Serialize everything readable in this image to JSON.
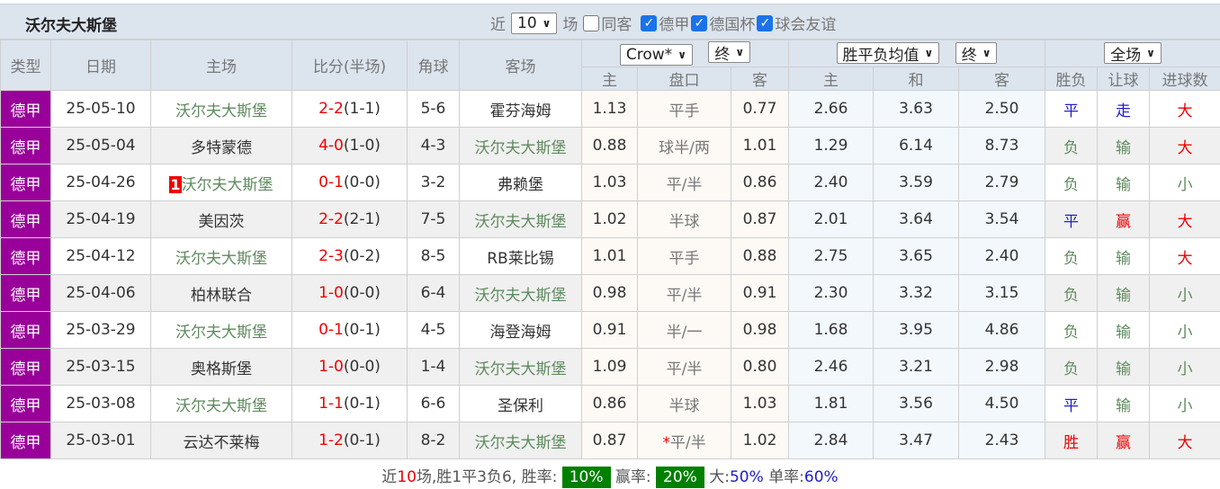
{
  "title": "沃尔夫大斯堡",
  "filters": {
    "recent_label": "近",
    "recent_value": "10",
    "games_label": "场",
    "same_home": {
      "label": "同客",
      "checked": false
    },
    "comps": [
      {
        "label": "德甲",
        "checked": true
      },
      {
        "label": "德国杯",
        "checked": true
      },
      {
        "label": "球会友谊",
        "checked": true
      }
    ]
  },
  "headers": {
    "type": "类型",
    "date": "日期",
    "home": "主场",
    "score": "比分(半场)",
    "corner": "角球",
    "away": "客场",
    "ah_company": "Crow*",
    "ah_time": "终",
    "eu_type": "胜平负均值",
    "eu_time": "终",
    "scope": "全场",
    "ah_home": "主",
    "ah_line": "盘口",
    "ah_away": "客",
    "eu_home": "主",
    "eu_draw": "和",
    "eu_away": "客",
    "wl": "胜负",
    "hc": "让球",
    "goals": "进球数"
  },
  "colors": {
    "league": "#990099",
    "team": "#5e8a5e",
    "score": "#ee0000",
    "draw": "#2020cc",
    "win_rate": "#008000"
  },
  "rows": [
    {
      "type": "德甲",
      "date": "25-05-10",
      "home": "沃尔夫大斯堡",
      "home_hl": true,
      "badge": "",
      "score": "2-2",
      "half": "(1-1)",
      "corner": "5-6",
      "away": "霍芬海姆",
      "away_hl": false,
      "ah_h": "1.13",
      "ah_star": "",
      "ah_line": "平手",
      "ah_a": "0.77",
      "eu_h": "2.66",
      "eu_d": "3.63",
      "eu_a": "2.50",
      "wl": "平",
      "hc": "走",
      "goals": "大"
    },
    {
      "type": "德甲",
      "date": "25-05-04",
      "home": "多特蒙德",
      "home_hl": false,
      "badge": "",
      "score": "4-0",
      "half": "(1-0)",
      "corner": "4-3",
      "away": "沃尔夫大斯堡",
      "away_hl": true,
      "ah_h": "0.88",
      "ah_star": "",
      "ah_line": "球半/两",
      "ah_a": "1.01",
      "eu_h": "1.29",
      "eu_d": "6.14",
      "eu_a": "8.73",
      "wl": "负",
      "hc": "输",
      "goals": "大"
    },
    {
      "type": "德甲",
      "date": "25-04-26",
      "home": "沃尔夫大斯堡",
      "home_hl": true,
      "badge": "1",
      "score": "0-1",
      "half": "(0-0)",
      "corner": "3-2",
      "away": "弗赖堡",
      "away_hl": false,
      "ah_h": "1.03",
      "ah_star": "",
      "ah_line": "平/半",
      "ah_a": "0.86",
      "eu_h": "2.40",
      "eu_d": "3.59",
      "eu_a": "2.79",
      "wl": "负",
      "hc": "输",
      "goals": "小"
    },
    {
      "type": "德甲",
      "date": "25-04-19",
      "home": "美因茨",
      "home_hl": false,
      "badge": "",
      "score": "2-2",
      "half": "(2-1)",
      "corner": "7-5",
      "away": "沃尔夫大斯堡",
      "away_hl": true,
      "ah_h": "1.02",
      "ah_star": "",
      "ah_line": "半球",
      "ah_a": "0.87",
      "eu_h": "2.01",
      "eu_d": "3.64",
      "eu_a": "3.54",
      "wl": "平",
      "hc": "赢",
      "goals": "大"
    },
    {
      "type": "德甲",
      "date": "25-04-12",
      "home": "沃尔夫大斯堡",
      "home_hl": true,
      "badge": "",
      "score": "2-3",
      "half": "(0-2)",
      "corner": "8-5",
      "away": "RB莱比锡",
      "away_hl": false,
      "ah_h": "1.01",
      "ah_star": "",
      "ah_line": "平手",
      "ah_a": "0.88",
      "eu_h": "2.75",
      "eu_d": "3.65",
      "eu_a": "2.40",
      "wl": "负",
      "hc": "输",
      "goals": "大"
    },
    {
      "type": "德甲",
      "date": "25-04-06",
      "home": "柏林联合",
      "home_hl": false,
      "badge": "",
      "score": "1-0",
      "half": "(0-0)",
      "corner": "6-4",
      "away": "沃尔夫大斯堡",
      "away_hl": true,
      "ah_h": "0.98",
      "ah_star": "",
      "ah_line": "平/半",
      "ah_a": "0.91",
      "eu_h": "2.30",
      "eu_d": "3.32",
      "eu_a": "3.15",
      "wl": "负",
      "hc": "输",
      "goals": "小"
    },
    {
      "type": "德甲",
      "date": "25-03-29",
      "home": "沃尔夫大斯堡",
      "home_hl": true,
      "badge": "",
      "score": "0-1",
      "half": "(0-1)",
      "corner": "4-5",
      "away": "海登海姆",
      "away_hl": false,
      "ah_h": "0.91",
      "ah_star": "",
      "ah_line": "半/一",
      "ah_a": "0.98",
      "eu_h": "1.68",
      "eu_d": "3.95",
      "eu_a": "4.86",
      "wl": "负",
      "hc": "输",
      "goals": "小"
    },
    {
      "type": "德甲",
      "date": "25-03-15",
      "home": "奥格斯堡",
      "home_hl": false,
      "badge": "",
      "score": "1-0",
      "half": "(0-0)",
      "corner": "1-4",
      "away": "沃尔夫大斯堡",
      "away_hl": true,
      "ah_h": "1.09",
      "ah_star": "",
      "ah_line": "平/半",
      "ah_a": "0.80",
      "eu_h": "2.46",
      "eu_d": "3.21",
      "eu_a": "2.98",
      "wl": "负",
      "hc": "输",
      "goals": "小"
    },
    {
      "type": "德甲",
      "date": "25-03-08",
      "home": "沃尔夫大斯堡",
      "home_hl": true,
      "badge": "",
      "score": "1-1",
      "half": "(0-1)",
      "corner": "6-6",
      "away": "圣保利",
      "away_hl": false,
      "ah_h": "0.86",
      "ah_star": "",
      "ah_line": "半球",
      "ah_a": "1.03",
      "eu_h": "1.81",
      "eu_d": "3.56",
      "eu_a": "4.50",
      "wl": "平",
      "hc": "输",
      "goals": "小"
    },
    {
      "type": "德甲",
      "date": "25-03-01",
      "home": "云达不莱梅",
      "home_hl": false,
      "badge": "",
      "score": "1-2",
      "half": "(0-1)",
      "corner": "8-2",
      "away": "沃尔夫大斯堡",
      "away_hl": true,
      "ah_h": "0.87",
      "ah_star": "*",
      "ah_line": "平/半",
      "ah_a": "1.02",
      "eu_h": "2.84",
      "eu_d": "3.47",
      "eu_a": "2.43",
      "wl": "胜",
      "hc": "赢",
      "goals": "大"
    }
  ],
  "summary": {
    "p1": "近",
    "n": "10",
    "p2": "场,胜1平3负6, 胜率:",
    "win_rate": "10%",
    "p3": "赢率:",
    "cover_rate": "20%",
    "p4": "大:",
    "over_rate": "50%",
    "p5": "单率:",
    "odd_rate": "60%"
  }
}
